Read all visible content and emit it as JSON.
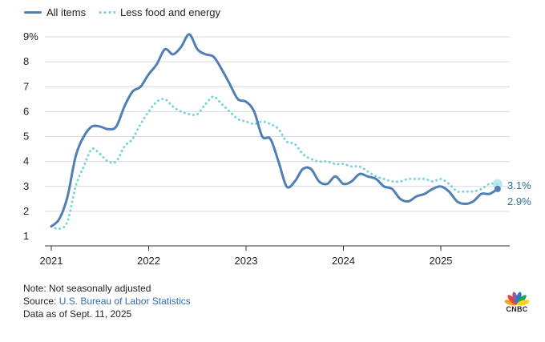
{
  "legend": {
    "all_items": "All items",
    "less_food_energy": "Less food and energy"
  },
  "colors": {
    "all_items": "#4f7fb4",
    "less_food_energy": "#78d4d9",
    "grid": "#d9d9d9",
    "axis": "#333333"
  },
  "chart_data": {
    "type": "line",
    "title": "",
    "xlabel": "",
    "ylabel": "",
    "ylim": [
      1,
      9
    ],
    "y_ticks": [
      "1",
      "2",
      "3",
      "4",
      "5",
      "6",
      "7",
      "8",
      "9%"
    ],
    "x_tick_labels": [
      "2021",
      "2022",
      "2023",
      "2024",
      "2025"
    ],
    "grid": "horizontal",
    "legend_position": "top-left",
    "x": [
      "2021-01",
      "2021-02",
      "2021-03",
      "2021-04",
      "2021-05",
      "2021-06",
      "2021-07",
      "2021-08",
      "2021-09",
      "2021-10",
      "2021-11",
      "2021-12",
      "2022-01",
      "2022-02",
      "2022-03",
      "2022-04",
      "2022-05",
      "2022-06",
      "2022-07",
      "2022-08",
      "2022-09",
      "2022-10",
      "2022-11",
      "2022-12",
      "2023-01",
      "2023-02",
      "2023-03",
      "2023-04",
      "2023-05",
      "2023-06",
      "2023-07",
      "2023-08",
      "2023-09",
      "2023-10",
      "2023-11",
      "2023-12",
      "2024-01",
      "2024-02",
      "2024-03",
      "2024-04",
      "2024-05",
      "2024-06",
      "2024-07",
      "2024-08",
      "2024-09",
      "2024-10",
      "2024-11",
      "2024-12",
      "2025-01",
      "2025-02",
      "2025-03",
      "2025-04",
      "2025-05",
      "2025-06",
      "2025-07",
      "2025-08"
    ],
    "series": [
      {
        "name": "All items",
        "values": [
          1.4,
          1.7,
          2.6,
          4.2,
          5.0,
          5.4,
          5.4,
          5.3,
          5.4,
          6.2,
          6.8,
          7.0,
          7.5,
          7.9,
          8.5,
          8.3,
          8.6,
          9.1,
          8.5,
          8.3,
          8.2,
          7.7,
          7.1,
          6.5,
          6.4,
          6.0,
          5.0,
          4.9,
          4.0,
          3.0,
          3.2,
          3.7,
          3.7,
          3.2,
          3.1,
          3.4,
          3.1,
          3.2,
          3.5,
          3.4,
          3.3,
          3.0,
          2.9,
          2.5,
          2.4,
          2.6,
          2.7,
          2.9,
          3.0,
          2.8,
          2.4,
          2.3,
          2.4,
          2.7,
          2.7,
          2.9
        ]
      },
      {
        "name": "Less food and energy",
        "values": [
          1.4,
          1.3,
          1.6,
          3.0,
          3.8,
          4.5,
          4.3,
          4.0,
          4.0,
          4.6,
          4.9,
          5.5,
          6.0,
          6.4,
          6.5,
          6.2,
          6.0,
          5.9,
          5.9,
          6.3,
          6.6,
          6.3,
          6.0,
          5.7,
          5.6,
          5.5,
          5.6,
          5.5,
          5.3,
          4.8,
          4.7,
          4.3,
          4.1,
          4.0,
          4.0,
          3.9,
          3.9,
          3.8,
          3.8,
          3.6,
          3.4,
          3.3,
          3.2,
          3.2,
          3.3,
          3.3,
          3.3,
          3.2,
          3.3,
          3.1,
          2.8,
          2.8,
          2.8,
          2.9,
          3.1,
          3.1
        ]
      }
    ],
    "end_labels": [
      "3.1%",
      "2.9%"
    ]
  },
  "footer": {
    "note": "Note: Not seasonally adjusted",
    "source_prefix": "Source: ",
    "source_link": "U.S. Bureau of Labor Statistics",
    "data_as_of": "Data as of Sept. 11, 2025"
  },
  "logo": {
    "text": "CNBC",
    "icon": "nbc-peacock-icon"
  }
}
